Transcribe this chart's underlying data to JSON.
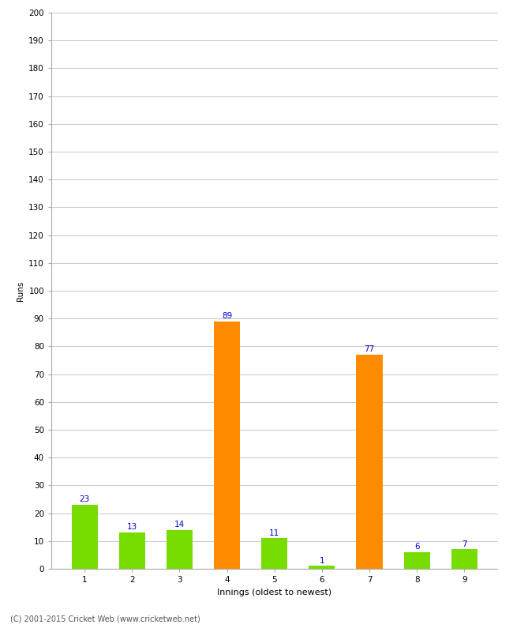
{
  "categories": [
    "1",
    "2",
    "3",
    "4",
    "5",
    "6",
    "7",
    "8",
    "9"
  ],
  "values": [
    23,
    13,
    14,
    89,
    11,
    1,
    77,
    6,
    7
  ],
  "bar_colors": [
    "#77dd00",
    "#77dd00",
    "#77dd00",
    "#ff8c00",
    "#77dd00",
    "#77dd00",
    "#ff8c00",
    "#77dd00",
    "#77dd00"
  ],
  "xlabel": "Innings (oldest to newest)",
  "ylabel": "Runs",
  "ylim": [
    0,
    200
  ],
  "yticks": [
    0,
    10,
    20,
    30,
    40,
    50,
    60,
    70,
    80,
    90,
    100,
    110,
    120,
    130,
    140,
    150,
    160,
    170,
    180,
    190,
    200
  ],
  "label_color": "#0000cc",
  "label_fontsize": 7.5,
  "xlabel_fontsize": 8,
  "ylabel_fontsize": 7.5,
  "tick_fontsize": 7.5,
  "background_color": "#ffffff",
  "grid_color": "#cccccc",
  "footer_text": "(C) 2001-2015 Cricket Web (www.cricketweb.net)"
}
